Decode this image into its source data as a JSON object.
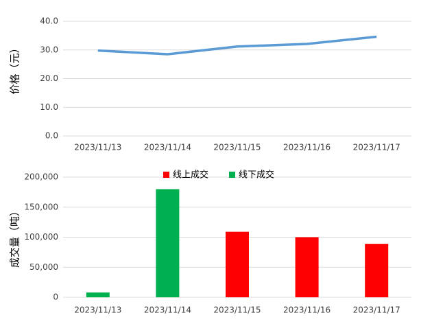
{
  "chart_data": [
    {
      "type": "line",
      "y_label": "价格（元）",
      "categories": [
        "2023/11/13",
        "2023/11/14",
        "2023/11/15",
        "2023/11/16",
        "2023/11/17"
      ],
      "series": [
        {
          "color": "#5b9bd5",
          "values": [
            29.8,
            28.5,
            31.2,
            32.1,
            34.6
          ]
        }
      ],
      "ylim": [
        0,
        40
      ],
      "yticks": [
        {
          "value": 0,
          "label": "0.0"
        },
        {
          "value": 10,
          "label": "10.0"
        },
        {
          "value": 20,
          "label": "20.0"
        },
        {
          "value": 30,
          "label": "30.0"
        },
        {
          "value": 40,
          "label": "40.0"
        }
      ],
      "grid": true
    },
    {
      "type": "bar",
      "y_label": "成交量（吨）",
      "categories": [
        "2023/11/13",
        "2023/11/14",
        "2023/11/15",
        "2023/11/16",
        "2023/11/17"
      ],
      "series": [
        {
          "name": "线上成交",
          "color": "#ff0000",
          "values": [
            null,
            null,
            109000,
            100000,
            89000
          ]
        },
        {
          "name": "线下成交",
          "color": "#00b050",
          "values": [
            8000,
            180000,
            null,
            null,
            null
          ]
        }
      ],
      "ylim": [
        0,
        200000
      ],
      "yticks": [
        0,
        {
          "value": 50000,
          "label": "50,000"
        },
        {
          "value": 100000,
          "label": "100,000"
        },
        {
          "value": 150000,
          "label": "150,000"
        },
        {
          "value": 200000,
          "label": "200,000"
        }
      ],
      "grid": true,
      "legend": "top"
    }
  ]
}
